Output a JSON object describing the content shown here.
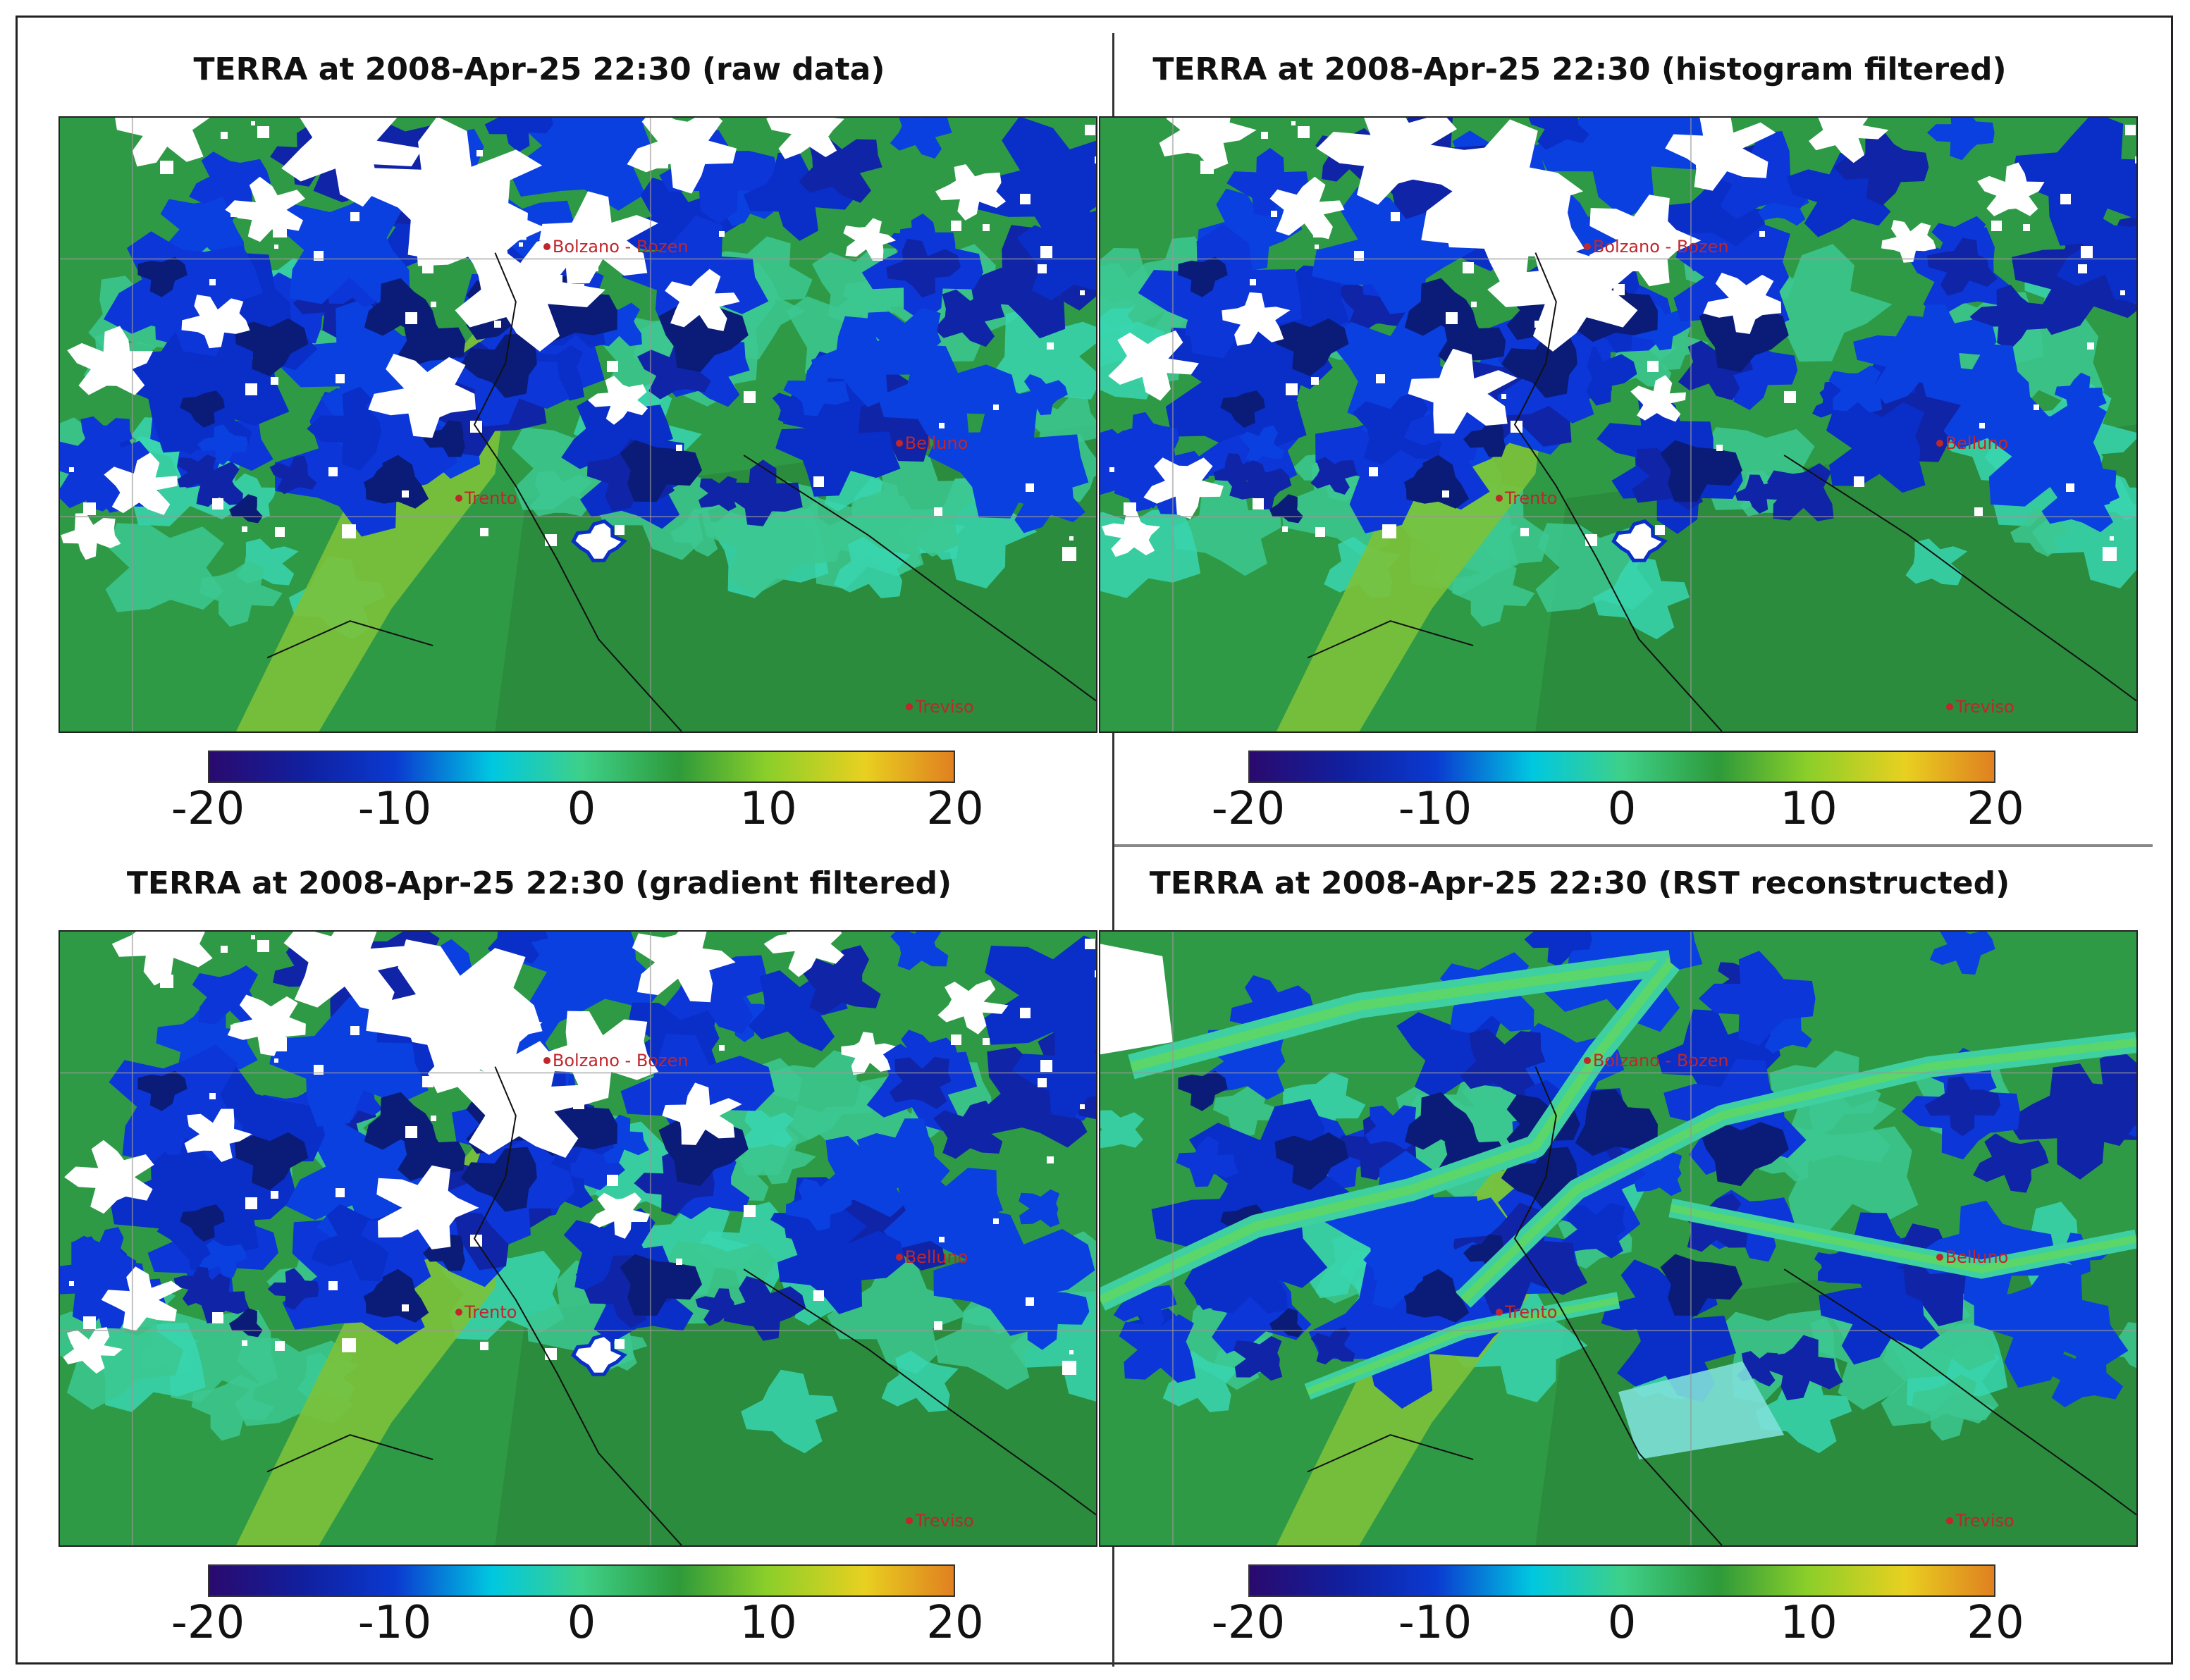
{
  "panels": [
    {
      "title": "TERRA at 2008-Apr-25 22:30 (raw data)",
      "style": "raw"
    },
    {
      "title": "TERRA at 2008-Apr-25 22:30 (histogram filtered)",
      "style": "raw"
    },
    {
      "title": "TERRA at 2008-Apr-25 22:30 (gradient filtered)",
      "style": "raw"
    },
    {
      "title": "TERRA at 2008-Apr-25 22:30 (RST reconstructed)",
      "style": "rst"
    }
  ],
  "colorbar": {
    "ticks": [
      "-20",
      "-10",
      "0",
      "10",
      "20"
    ],
    "range": [
      -20,
      20
    ],
    "colors": [
      "#2a0a6e",
      "#1020a0",
      "#0a3ad0",
      "#00c8e0",
      "#3ed08a",
      "#2e9a3a",
      "#8ccf2a",
      "#e8d020",
      "#e08020"
    ]
  },
  "cities": [
    {
      "name": "Bolzano - Bozen"
    },
    {
      "name": "Belluno"
    },
    {
      "name": "Trento"
    },
    {
      "name": "Treviso"
    }
  ]
}
